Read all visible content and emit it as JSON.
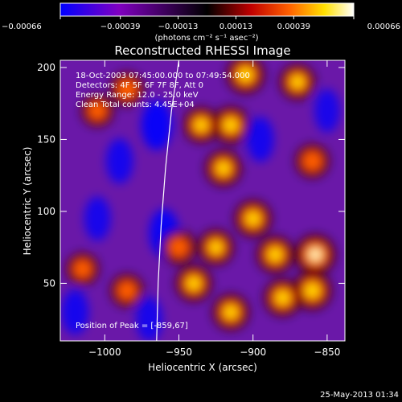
{
  "chart_data": {
    "type": "heatmap",
    "title": "Reconstructed RHESSI Image",
    "xlabel": "Heliocentric X (arcsec)",
    "ylabel": "Heliocentric Y (arcsec)",
    "xlim": [
      -1030,
      -838
    ],
    "ylim": [
      10,
      205
    ],
    "x_ticks": [
      -1000,
      -950,
      -900,
      -850
    ],
    "x_tick_labels": [
      "−1000",
      "−950",
      "−900",
      "−850"
    ],
    "y_ticks": [
      50,
      100,
      150,
      200
    ],
    "y_tick_labels": [
      "50",
      "100",
      "150",
      "200"
    ],
    "colorbar": {
      "range": [
        -0.00066,
        0.00066
      ],
      "ticks": [
        -0.00066,
        -0.00039,
        -0.00013,
        0.00013,
        0.00039,
        0.00066
      ],
      "tick_labels": [
        "−0.00066",
        "−0.00039",
        "−0.00013",
        "0.00013",
        "0.00039",
        "0.00066"
      ],
      "units": "(photons cm⁻² s⁻¹ asec⁻²)",
      "colormap": [
        "#0000ff",
        "#8000c0",
        "#000000",
        "#c00000",
        "#ff6000",
        "#ffe000",
        "#ffffff"
      ]
    },
    "annotations": [
      "18-Oct-2003 07:45:00.000 to 07:49:54.000",
      "Detectors: 4F 5F 6F 7F 8F, Att 0",
      "Energy Range: 12.0 - 25.0 keV",
      "Clean     Total counts: 4.45E+04"
    ],
    "peak_label": "Position of Peak = [-859,67]",
    "limb_curve": [
      [
        -950,
        205
      ],
      [
        -955,
        170
      ],
      [
        -959,
        130
      ],
      [
        -962,
        90
      ],
      [
        -964,
        50
      ],
      [
        -965,
        10
      ]
    ],
    "bright_regions": [
      {
        "x": -905,
        "y": 195,
        "level": 0.85
      },
      {
        "x": -870,
        "y": 190,
        "level": 0.7
      },
      {
        "x": -915,
        "y": 160,
        "level": 0.8
      },
      {
        "x": -935,
        "y": 160,
        "level": 0.7
      },
      {
        "x": -920,
        "y": 130,
        "level": 0.75
      },
      {
        "x": -900,
        "y": 95,
        "level": 0.8
      },
      {
        "x": -885,
        "y": 70,
        "level": 0.8
      },
      {
        "x": -858,
        "y": 70,
        "level": 1.0
      },
      {
        "x": -860,
        "y": 45,
        "level": 0.9
      },
      {
        "x": -880,
        "y": 40,
        "level": 0.8
      },
      {
        "x": -940,
        "y": 50,
        "level": 0.75
      },
      {
        "x": -925,
        "y": 75,
        "level": 0.7
      },
      {
        "x": -915,
        "y": 30,
        "level": 0.75
      },
      {
        "x": -950,
        "y": 75,
        "level": 0.6
      },
      {
        "x": -985,
        "y": 45,
        "level": 0.55
      },
      {
        "x": -1015,
        "y": 60,
        "level": 0.5
      },
      {
        "x": -1005,
        "y": 170,
        "level": 0.5
      },
      {
        "x": -985,
        "y": 185,
        "level": 0.6
      },
      {
        "x": -860,
        "y": 135,
        "level": 0.6
      }
    ],
    "dark_regions": [
      {
        "x": -965,
        "y": 160,
        "level": 0.9
      },
      {
        "x": -960,
        "y": 85,
        "level": 0.8
      },
      {
        "x": -990,
        "y": 135,
        "level": 0.6
      },
      {
        "x": -1005,
        "y": 95,
        "level": 0.55
      },
      {
        "x": -895,
        "y": 150,
        "level": 0.6
      },
      {
        "x": -850,
        "y": 170,
        "level": 0.5
      },
      {
        "x": -1020,
        "y": 30,
        "level": 0.6
      },
      {
        "x": -970,
        "y": 25,
        "level": 0.55
      }
    ]
  },
  "footer_timestamp": "25-May-2013 01:34"
}
